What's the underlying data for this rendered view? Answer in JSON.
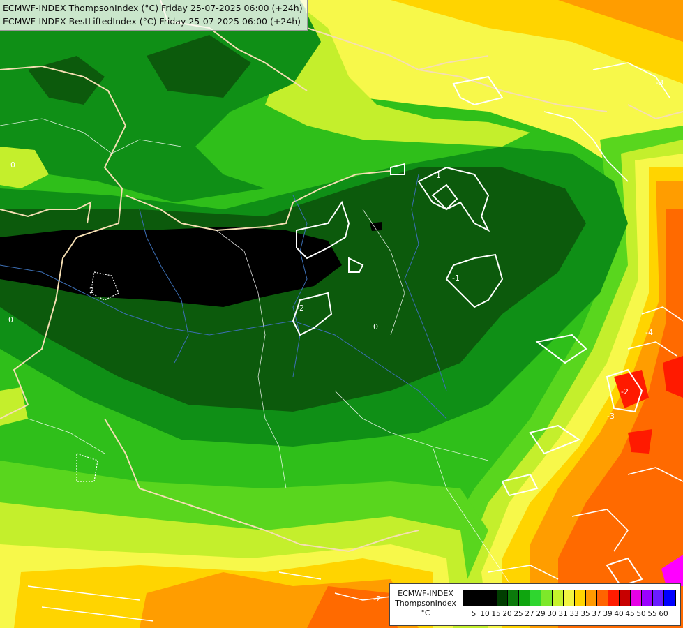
{
  "header": {
    "line1": "ECMWF-INDEX ThompsonIndex (°C) Friday 25-07-2025 06:00 (+24h)",
    "line2": "ECMWF-INDEX BestLiftedIndex (°C) Friday 25-07-2025 06:00 (+24h)"
  },
  "contour_labels": [
    "0",
    "1",
    "-1",
    "-2",
    "2",
    "0",
    "-2",
    "-3",
    "-4",
    "-3",
    "0",
    "-2"
  ],
  "legend": {
    "line1": "ECMWF-INDEX",
    "line2": "ThompsonIndex",
    "line3": "°C",
    "ticks": [
      "5",
      "10",
      "15",
      "20",
      "25",
      "27",
      "29",
      "30",
      "31",
      "33",
      "35",
      "37",
      "39",
      "40",
      "45",
      "50",
      "55",
      "60"
    ],
    "colors": [
      "#000000",
      "#000000",
      "#000000",
      "#003d00",
      "#0b7a0b",
      "#0fa50f",
      "#2fd62f",
      "#7de82a",
      "#c6f22c",
      "#f2f542",
      "#ffd500",
      "#ff9a00",
      "#ff6400",
      "#ff1c00",
      "#c80000",
      "#e600e6",
      "#9b00ff",
      "#6a1cff",
      "#0000ff"
    ]
  },
  "map_colors": {
    "black": "#000000",
    "dark_green": "#0c5a0c",
    "green": "#0f8f16",
    "mid_green": "#2fbf1a",
    "light_green": "#59d61e",
    "yellow_green": "#c4ef2c",
    "yellow": "#f7f84a",
    "gold": "#ffd400",
    "orange": "#ff9d00",
    "dark_orange": "#ff6a00",
    "red": "#ff1a00",
    "magenta": "#ff00ff"
  }
}
